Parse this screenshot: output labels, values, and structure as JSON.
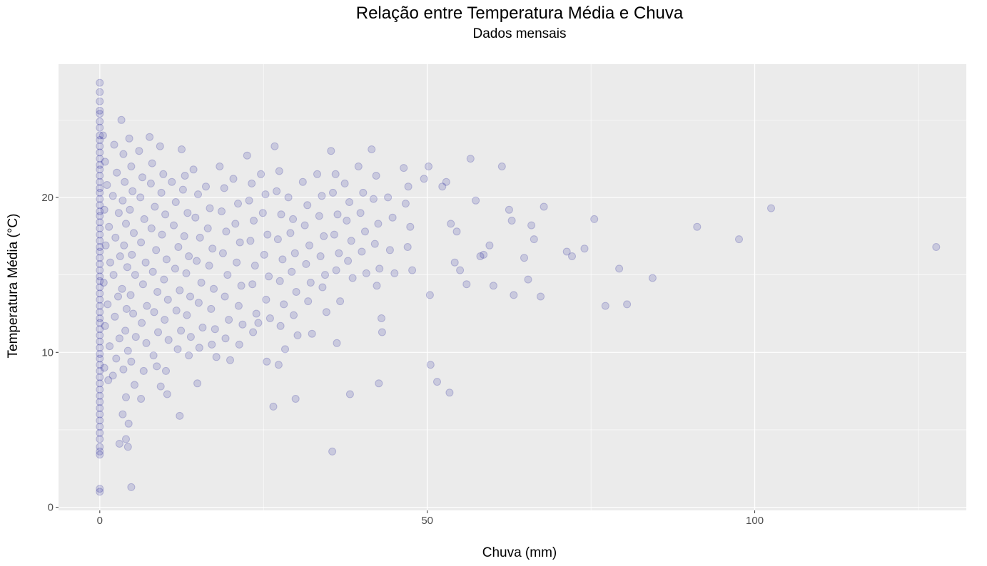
{
  "chart_data": {
    "type": "scatter",
    "title": "Relação entre Temperatura Média e Chuva",
    "subtitle": "Dados mensais",
    "xlabel": "Chuva (mm)",
    "ylabel": "Temperatura Média (°C)",
    "xlim": [
      -6.3,
      132.3
    ],
    "ylim": [
      -0.2,
      28.6
    ],
    "x_ticks": [
      0,
      50,
      100
    ],
    "y_ticks": [
      0,
      10,
      20
    ],
    "grid": true,
    "point_color": "#00008b",
    "panel_color": "#ebebeb",
    "grid_color": "#ffffff",
    "note": "Many additional points lie at Chuva = 0 with temperatures spread between about 1 and 27.5",
    "points": [
      [
        0,
        27.4
      ],
      [
        0,
        26.8
      ],
      [
        0,
        26.2
      ],
      [
        0,
        25.6
      ],
      [
        0,
        25.4
      ],
      [
        0,
        24.9
      ],
      [
        0,
        24.5
      ],
      [
        0,
        24.0
      ],
      [
        0,
        23.7
      ],
      [
        0,
        23.3
      ],
      [
        0,
        22.9
      ],
      [
        0,
        22.5
      ],
      [
        0,
        22.1
      ],
      [
        0,
        21.8
      ],
      [
        0,
        21.4
      ],
      [
        0,
        21.0
      ],
      [
        0,
        20.6
      ],
      [
        0,
        20.3
      ],
      [
        0,
        19.9
      ],
      [
        0,
        19.5
      ],
      [
        0,
        19.1
      ],
      [
        0,
        18.8
      ],
      [
        0,
        18.4
      ],
      [
        0,
        18.0
      ],
      [
        0,
        17.6
      ],
      [
        0,
        17.2
      ],
      [
        0,
        16.8
      ],
      [
        0,
        16.5
      ],
      [
        0,
        16.1
      ],
      [
        0,
        15.7
      ],
      [
        0,
        15.3
      ],
      [
        0,
        14.9
      ],
      [
        0,
        14.6
      ],
      [
        0,
        14.2
      ],
      [
        0,
        13.8
      ],
      [
        0,
        13.4
      ],
      [
        0,
        13.0
      ],
      [
        0,
        12.6
      ],
      [
        0,
        12.2
      ],
      [
        0,
        11.9
      ],
      [
        0,
        11.5
      ],
      [
        0,
        11.1
      ],
      [
        0,
        10.7
      ],
      [
        0,
        10.3
      ],
      [
        0,
        9.9
      ],
      [
        0,
        9.6
      ],
      [
        0,
        9.2
      ],
      [
        0,
        8.8
      ],
      [
        0,
        8.4
      ],
      [
        0,
        8.0
      ],
      [
        0,
        7.6
      ],
      [
        0,
        7.2
      ],
      [
        0,
        6.8
      ],
      [
        0,
        6.4
      ],
      [
        0,
        6.0
      ],
      [
        0,
        5.6
      ],
      [
        0,
        5.2
      ],
      [
        0,
        4.8
      ],
      [
        0,
        4.4
      ],
      [
        0,
        3.9
      ],
      [
        0,
        3.6
      ],
      [
        0,
        3.4
      ],
      [
        0,
        1.2
      ],
      [
        0,
        1.0
      ],
      [
        0.5,
        24.0
      ],
      [
        0.8,
        22.3
      ],
      [
        1.1,
        20.8
      ],
      [
        0.7,
        19.2
      ],
      [
        1.4,
        18.1
      ],
      [
        0.9,
        16.9
      ],
      [
        1.6,
        15.8
      ],
      [
        0.6,
        14.5
      ],
      [
        1.2,
        13.1
      ],
      [
        0.8,
        11.7
      ],
      [
        1.5,
        10.4
      ],
      [
        0.7,
        9.0
      ],
      [
        1.3,
        8.2
      ],
      [
        2.2,
        23.4
      ],
      [
        2.6,
        21.6
      ],
      [
        2.0,
        20.1
      ],
      [
        2.9,
        19.0
      ],
      [
        2.4,
        17.4
      ],
      [
        3.1,
        16.2
      ],
      [
        2.1,
        15.0
      ],
      [
        2.8,
        13.6
      ],
      [
        2.3,
        12.3
      ],
      [
        3.0,
        10.9
      ],
      [
        2.5,
        9.6
      ],
      [
        2.0,
        8.5
      ],
      [
        3.3,
        25.0
      ],
      [
        3.6,
        22.8
      ],
      [
        3.8,
        21.0
      ],
      [
        3.5,
        19.8
      ],
      [
        4.0,
        18.3
      ],
      [
        3.7,
        16.9
      ],
      [
        4.2,
        15.5
      ],
      [
        3.4,
        14.1
      ],
      [
        4.1,
        12.8
      ],
      [
        3.9,
        11.4
      ],
      [
        4.3,
        10.1
      ],
      [
        3.6,
        8.9
      ],
      [
        4.0,
        7.1
      ],
      [
        3.5,
        6.0
      ],
      [
        4.5,
        23.8
      ],
      [
        4.8,
        22.0
      ],
      [
        5.0,
        20.4
      ],
      [
        4.6,
        19.2
      ],
      [
        5.2,
        17.7
      ],
      [
        4.9,
        16.3
      ],
      [
        5.4,
        15.0
      ],
      [
        4.7,
        13.7
      ],
      [
        5.1,
        12.5
      ],
      [
        5.5,
        11.0
      ],
      [
        4.8,
        9.4
      ],
      [
        5.3,
        7.9
      ],
      [
        4.4,
        5.4
      ],
      [
        4.3,
        3.9
      ],
      [
        4.8,
        1.3
      ],
      [
        3.0,
        4.1
      ],
      [
        4.0,
        4.4
      ],
      [
        6.0,
        23.0
      ],
      [
        6.5,
        21.3
      ],
      [
        6.2,
        20.0
      ],
      [
        6.8,
        18.6
      ],
      [
        6.3,
        17.1
      ],
      [
        7.0,
        15.8
      ],
      [
        6.6,
        14.4
      ],
      [
        7.2,
        13.0
      ],
      [
        6.4,
        11.9
      ],
      [
        7.1,
        10.6
      ],
      [
        6.7,
        8.8
      ],
      [
        6.3,
        7.0
      ],
      [
        7.6,
        23.9
      ],
      [
        8.0,
        22.2
      ],
      [
        7.8,
        20.9
      ],
      [
        8.4,
        19.4
      ],
      [
        7.9,
        18.0
      ],
      [
        8.6,
        16.6
      ],
      [
        8.1,
        15.2
      ],
      [
        8.8,
        13.9
      ],
      [
        8.3,
        12.6
      ],
      [
        8.9,
        11.3
      ],
      [
        8.2,
        9.8
      ],
      [
        8.7,
        9.1
      ],
      [
        9.2,
        23.3
      ],
      [
        9.7,
        21.5
      ],
      [
        9.4,
        20.3
      ],
      [
        10.0,
        18.9
      ],
      [
        9.5,
        17.6
      ],
      [
        10.2,
        16.0
      ],
      [
        9.8,
        14.7
      ],
      [
        10.4,
        13.4
      ],
      [
        9.9,
        12.1
      ],
      [
        10.5,
        10.8
      ],
      [
        10.1,
        8.8
      ],
      [
        10.3,
        7.3
      ],
      [
        9.3,
        7.8
      ],
      [
        11.0,
        21.0
      ],
      [
        11.6,
        19.7
      ],
      [
        11.3,
        18.2
      ],
      [
        12.0,
        16.8
      ],
      [
        11.5,
        15.4
      ],
      [
        12.2,
        14.0
      ],
      [
        11.7,
        12.7
      ],
      [
        12.4,
        11.4
      ],
      [
        11.9,
        10.2
      ],
      [
        12.5,
        23.1
      ],
      [
        13.0,
        21.4
      ],
      [
        12.7,
        20.5
      ],
      [
        13.4,
        19.0
      ],
      [
        12.9,
        17.5
      ],
      [
        13.6,
        16.2
      ],
      [
        13.2,
        15.1
      ],
      [
        13.8,
        13.6
      ],
      [
        13.3,
        12.4
      ],
      [
        13.9,
        11.0
      ],
      [
        13.6,
        9.8
      ],
      [
        12.2,
        5.9
      ],
      [
        14.3,
        21.8
      ],
      [
        15.0,
        20.2
      ],
      [
        14.6,
        18.7
      ],
      [
        15.3,
        17.4
      ],
      [
        14.8,
        15.9
      ],
      [
        15.5,
        14.5
      ],
      [
        15.1,
        13.2
      ],
      [
        15.7,
        11.6
      ],
      [
        15.2,
        10.3
      ],
      [
        14.9,
        8.0
      ],
      [
        16.2,
        20.7
      ],
      [
        16.8,
        19.3
      ],
      [
        16.5,
        18.0
      ],
      [
        17.2,
        16.7
      ],
      [
        16.7,
        15.6
      ],
      [
        17.4,
        14.1
      ],
      [
        17.0,
        12.8
      ],
      [
        17.6,
        11.5
      ],
      [
        17.1,
        10.5
      ],
      [
        17.8,
        9.7
      ],
      [
        18.3,
        22.0
      ],
      [
        19.0,
        20.6
      ],
      [
        18.6,
        19.1
      ],
      [
        19.3,
        17.8
      ],
      [
        18.8,
        16.4
      ],
      [
        19.5,
        15.0
      ],
      [
        19.1,
        13.6
      ],
      [
        19.7,
        12.1
      ],
      [
        19.2,
        10.9
      ],
      [
        19.9,
        9.5
      ],
      [
        20.4,
        21.2
      ],
      [
        21.1,
        19.6
      ],
      [
        20.7,
        18.3
      ],
      [
        21.4,
        17.1
      ],
      [
        20.9,
        15.8
      ],
      [
        21.6,
        14.3
      ],
      [
        21.2,
        13.0
      ],
      [
        21.8,
        11.8
      ],
      [
        21.3,
        10.5
      ],
      [
        22.5,
        22.7
      ],
      [
        23.2,
        20.9
      ],
      [
        22.8,
        19.8
      ],
      [
        23.5,
        18.5
      ],
      [
        23.0,
        17.2
      ],
      [
        23.7,
        15.6
      ],
      [
        23.3,
        14.4
      ],
      [
        23.9,
        12.5
      ],
      [
        23.4,
        11.3
      ],
      [
        24.6,
        21.5
      ],
      [
        25.3,
        20.2
      ],
      [
        24.9,
        19.0
      ],
      [
        25.6,
        17.6
      ],
      [
        25.1,
        16.3
      ],
      [
        25.8,
        14.9
      ],
      [
        25.4,
        13.4
      ],
      [
        26.0,
        12.2
      ],
      [
        25.5,
        9.4
      ],
      [
        24.2,
        11.9
      ],
      [
        26.7,
        23.3
      ],
      [
        27.4,
        21.7
      ],
      [
        27.0,
        20.4
      ],
      [
        27.7,
        18.9
      ],
      [
        27.2,
        17.3
      ],
      [
        27.9,
        16.0
      ],
      [
        27.5,
        14.6
      ],
      [
        28.1,
        13.1
      ],
      [
        27.6,
        11.7
      ],
      [
        28.3,
        10.2
      ],
      [
        27.3,
        9.2
      ],
      [
        26.5,
        6.5
      ],
      [
        28.8,
        20.0
      ],
      [
        29.5,
        18.6
      ],
      [
        29.1,
        17.7
      ],
      [
        29.8,
        16.4
      ],
      [
        29.3,
        15.2
      ],
      [
        30.0,
        13.9
      ],
      [
        29.6,
        12.4
      ],
      [
        30.2,
        11.1
      ],
      [
        29.9,
        7.0
      ],
      [
        31.0,
        21.0
      ],
      [
        31.7,
        19.5
      ],
      [
        31.3,
        18.2
      ],
      [
        32.0,
        16.9
      ],
      [
        31.5,
        15.7
      ],
      [
        32.2,
        14.5
      ],
      [
        31.8,
        13.3
      ],
      [
        32.4,
        11.2
      ],
      [
        33.2,
        21.5
      ],
      [
        33.9,
        20.1
      ],
      [
        33.5,
        18.8
      ],
      [
        34.2,
        17.5
      ],
      [
        33.7,
        16.2
      ],
      [
        34.4,
        15.0
      ],
      [
        34.0,
        14.2
      ],
      [
        34.6,
        12.6
      ],
      [
        35.3,
        23.0
      ],
      [
        36.0,
        21.5
      ],
      [
        35.6,
        20.3
      ],
      [
        36.3,
        18.9
      ],
      [
        35.8,
        17.6
      ],
      [
        36.5,
        16.4
      ],
      [
        36.1,
        15.3
      ],
      [
        36.7,
        13.3
      ],
      [
        36.2,
        10.6
      ],
      [
        35.5,
        3.6
      ],
      [
        37.4,
        20.9
      ],
      [
        38.1,
        19.7
      ],
      [
        37.7,
        18.5
      ],
      [
        38.4,
        17.2
      ],
      [
        37.9,
        15.9
      ],
      [
        38.6,
        14.8
      ],
      [
        38.2,
        7.3
      ],
      [
        39.5,
        22.0
      ],
      [
        40.2,
        20.3
      ],
      [
        39.8,
        19.0
      ],
      [
        40.5,
        17.8
      ],
      [
        40.0,
        16.5
      ],
      [
        40.7,
        15.1
      ],
      [
        41.5,
        23.1
      ],
      [
        42.2,
        21.4
      ],
      [
        41.8,
        19.9
      ],
      [
        42.5,
        18.3
      ],
      [
        42.0,
        17.0
      ],
      [
        42.7,
        15.4
      ],
      [
        42.3,
        14.3
      ],
      [
        43.0,
        12.2
      ],
      [
        42.6,
        8.0
      ],
      [
        43.1,
        11.3
      ],
      [
        44.0,
        20.0
      ],
      [
        44.7,
        18.7
      ],
      [
        44.3,
        16.6
      ],
      [
        45.0,
        15.1
      ],
      [
        46.4,
        21.9
      ],
      [
        47.1,
        20.7
      ],
      [
        46.7,
        19.6
      ],
      [
        47.4,
        18.1
      ],
      [
        47.0,
        16.8
      ],
      [
        47.7,
        15.3
      ],
      [
        49.5,
        21.2
      ],
      [
        50.2,
        22.0
      ],
      [
        50.4,
        13.7
      ],
      [
        50.5,
        9.2
      ],
      [
        51.5,
        8.1
      ],
      [
        52.3,
        20.7
      ],
      [
        52.9,
        21.0
      ],
      [
        53.6,
        18.3
      ],
      [
        54.2,
        15.8
      ],
      [
        54.5,
        17.8
      ],
      [
        53.4,
        7.4
      ],
      [
        55.0,
        15.3
      ],
      [
        56.6,
        22.5
      ],
      [
        57.4,
        19.8
      ],
      [
        56.0,
        14.4
      ],
      [
        58.1,
        16.2
      ],
      [
        58.6,
        16.3
      ],
      [
        59.5,
        16.9
      ],
      [
        60.1,
        14.3
      ],
      [
        61.4,
        22.0
      ],
      [
        62.5,
        19.2
      ],
      [
        62.9,
        18.5
      ],
      [
        63.2,
        13.7
      ],
      [
        64.8,
        16.1
      ],
      [
        65.4,
        14.7
      ],
      [
        65.9,
        18.2
      ],
      [
        66.3,
        17.3
      ],
      [
        67.3,
        13.6
      ],
      [
        67.8,
        19.4
      ],
      [
        71.3,
        16.5
      ],
      [
        72.1,
        16.2
      ],
      [
        74.0,
        16.7
      ],
      [
        75.5,
        18.6
      ],
      [
        77.2,
        13.0
      ],
      [
        79.3,
        15.4
      ],
      [
        80.5,
        13.1
      ],
      [
        84.4,
        14.8
      ],
      [
        91.2,
        18.1
      ],
      [
        97.6,
        17.3
      ],
      [
        102.5,
        19.3
      ],
      [
        127.7,
        16.8
      ]
    ]
  }
}
